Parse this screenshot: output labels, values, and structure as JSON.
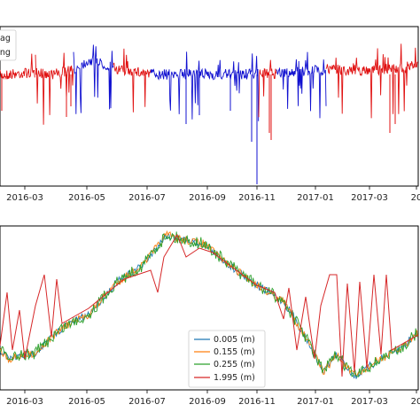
{
  "chart_data": [
    {
      "type": "line",
      "x_tick_labels": [
        "2016-03",
        "2016-05",
        "2016-07",
        "2016-09",
        "2016-11",
        "2017-01",
        "2017-03",
        "20"
      ],
      "legend": {
        "placement": "top-left",
        "entries": [
          "ag",
          "ang"
        ]
      },
      "series": [
        {
          "name": "ag",
          "color": "#1010d0"
        },
        {
          "name": "ang",
          "color": "#e01010"
        }
      ],
      "grid": false
    },
    {
      "type": "line",
      "x_tick_labels": [
        "2016-03",
        "2016-05",
        "2016-07",
        "2016-09",
        "2016-11",
        "2017-01",
        "2017-03",
        "20"
      ],
      "legend": {
        "placement": "bottom-center",
        "entries": [
          "0.005 (m)",
          "0.155 (m)",
          "0.255 (m)",
          "1.995 (m)"
        ]
      },
      "series": [
        {
          "name": "0.005 (m)",
          "color": "#1f77b4"
        },
        {
          "name": "0.155 (m)",
          "color": "#ff7f0e"
        },
        {
          "name": "0.255 (m)",
          "color": "#2ca02c"
        },
        {
          "name": "1.995 (m)",
          "color": "#d62728"
        }
      ],
      "grid": false
    }
  ]
}
